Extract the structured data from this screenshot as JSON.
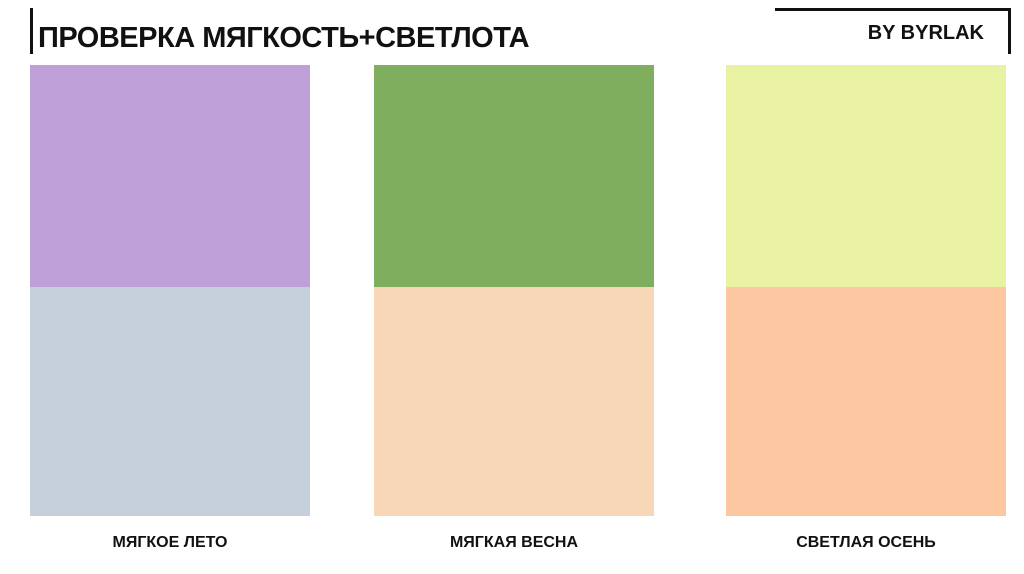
{
  "header": {
    "title": "ПРОВЕРКА МЯГКОСТЬ+СВЕТЛОТА",
    "author": "BY BYRLAK"
  },
  "panels": [
    {
      "label": "МЯГКОЕ ЛЕТО"
    },
    {
      "label": "МЯГКАЯ ВЕСНА"
    },
    {
      "label": "СВЕТЛАЯ ОСЕНЬ"
    }
  ]
}
